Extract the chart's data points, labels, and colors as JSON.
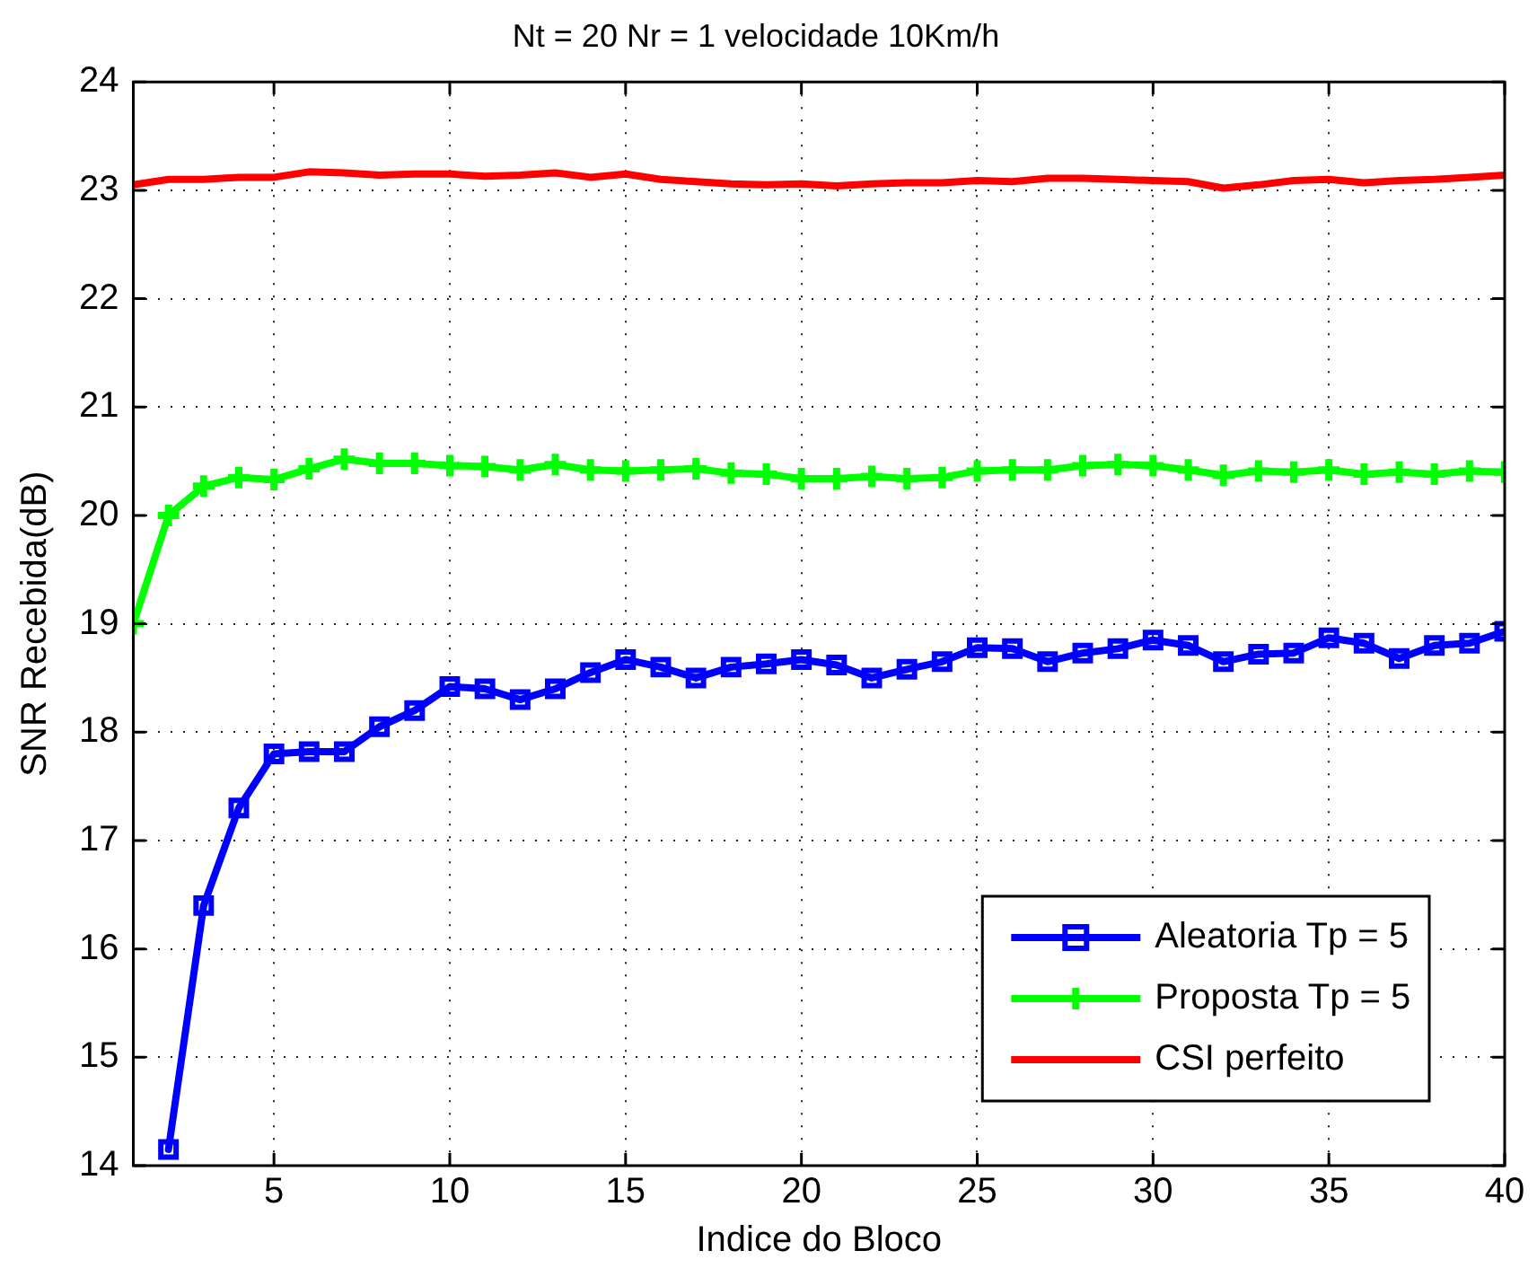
{
  "chart_data": {
    "type": "line",
    "title": "Nt = 20 Nr = 1 velocidade 10Km/h",
    "xlabel": "Indice do Bloco",
    "ylabel": "SNR Recebida(dB)",
    "x": [
      1,
      2,
      3,
      4,
      5,
      6,
      7,
      8,
      9,
      10,
      11,
      12,
      13,
      14,
      15,
      16,
      17,
      18,
      19,
      20,
      21,
      22,
      23,
      24,
      25,
      26,
      27,
      28,
      29,
      30,
      31,
      32,
      33,
      34,
      35,
      36,
      37,
      38,
      39,
      40
    ],
    "series": [
      {
        "name": "Aleatoria Tp = 5",
        "color": "#0000ff",
        "marker": "square",
        "values": [
          null,
          14.15,
          16.4,
          17.3,
          17.8,
          17.82,
          17.82,
          18.05,
          18.2,
          18.42,
          18.4,
          18.3,
          18.4,
          18.55,
          18.67,
          18.6,
          18.5,
          18.6,
          18.63,
          18.67,
          18.62,
          18.5,
          18.58,
          18.65,
          18.78,
          18.77,
          18.65,
          18.73,
          18.77,
          18.85,
          18.8,
          18.65,
          18.72,
          18.73,
          18.87,
          18.82,
          18.68,
          18.8,
          18.82,
          18.93
        ]
      },
      {
        "name": "Proposta Tp = 5",
        "color": "#00ff00",
        "marker": "cross",
        "values": [
          19.0,
          20.0,
          20.27,
          20.35,
          20.33,
          20.43,
          20.52,
          20.48,
          20.48,
          20.46,
          20.45,
          20.42,
          20.47,
          20.42,
          20.41,
          20.42,
          20.43,
          20.39,
          20.38,
          20.34,
          20.34,
          20.36,
          20.34,
          20.35,
          20.41,
          20.42,
          20.42,
          20.46,
          20.47,
          20.46,
          20.42,
          20.37,
          20.41,
          20.4,
          20.42,
          20.38,
          20.4,
          20.38,
          20.41,
          20.4
        ]
      },
      {
        "name": "CSI perfeito",
        "color": "#ff0000",
        "marker": "none",
        "values": [
          23.05,
          23.1,
          23.1,
          23.12,
          23.12,
          23.17,
          23.16,
          23.14,
          23.15,
          23.15,
          23.13,
          23.14,
          23.16,
          23.12,
          23.15,
          23.1,
          23.08,
          23.06,
          23.05,
          23.06,
          23.04,
          23.06,
          23.07,
          23.07,
          23.09,
          23.08,
          23.11,
          23.11,
          23.1,
          23.09,
          23.08,
          23.02,
          23.05,
          23.09,
          23.1,
          23.07,
          23.09,
          23.1,
          23.12,
          23.14
        ]
      }
    ],
    "xlim": [
      1,
      40
    ],
    "xticks": [
      5,
      10,
      15,
      20,
      25,
      30,
      35,
      40
    ],
    "ylim": [
      14,
      24
    ],
    "yticks": [
      14,
      15,
      16,
      17,
      18,
      19,
      20,
      21,
      22,
      23,
      24
    ],
    "grid": true,
    "legend": "bottom right",
    "line_style": "solid"
  }
}
